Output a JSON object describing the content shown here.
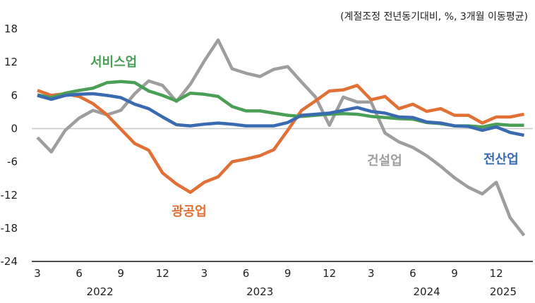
{
  "chart_data": {
    "type": "line",
    "unit_note": "(계절조정 전년동기대비, %, 3개월 이동평균)",
    "x": [
      "2022-03",
      "2022-04",
      "2022-05",
      "2022-06",
      "2022-07",
      "2022-08",
      "2022-09",
      "2022-10",
      "2022-11",
      "2022-12",
      "2023-01",
      "2023-02",
      "2023-03",
      "2023-04",
      "2023-05",
      "2023-06",
      "2023-07",
      "2023-08",
      "2023-09",
      "2023-10",
      "2023-11",
      "2023-12",
      "2024-01",
      "2024-02",
      "2024-03",
      "2024-04",
      "2024-05",
      "2024-06",
      "2024-07",
      "2024-08",
      "2024-09",
      "2024-10",
      "2024-11",
      "2024-12",
      "2025-01",
      "2025-02"
    ],
    "x_tick_labels": [
      "3",
      "6",
      "9",
      "12",
      "3",
      "6",
      "9",
      "12",
      "3",
      "6",
      "9",
      "12"
    ],
    "year_labels": [
      "2022",
      "2023",
      "2024",
      "2025"
    ],
    "ylim": [
      -24,
      18
    ],
    "y_ticks": [
      "18",
      "12",
      "6",
      "0",
      "-6",
      "-12",
      "-18",
      "-24"
    ],
    "grid": false,
    "zero_line": true,
    "series": [
      {
        "name": "전산업",
        "color": "#3a6ab0",
        "values": [
          6.0,
          5.3,
          6.0,
          6.2,
          6.3,
          6.0,
          5.6,
          4.4,
          3.6,
          2.1,
          0.7,
          0.5,
          0.8,
          1.0,
          0.8,
          0.5,
          0.5,
          0.5,
          1.1,
          2.4,
          2.6,
          2.8,
          3.3,
          3.8,
          3.1,
          2.8,
          2.1,
          2.0,
          1.2,
          1.0,
          0.5,
          0.4,
          -0.3,
          0.3,
          -0.7,
          -1.2
        ]
      },
      {
        "name": "광공업",
        "color": "#e07035",
        "values": [
          6.9,
          6.0,
          6.3,
          5.8,
          4.5,
          2.5,
          -0.1,
          -2.7,
          -3.9,
          -8.0,
          -10.0,
          -11.5,
          -9.7,
          -8.7,
          -6.0,
          -5.5,
          -4.9,
          -3.8,
          -0.3,
          3.3,
          5.0,
          6.8,
          7.0,
          7.8,
          5.2,
          5.8,
          3.6,
          4.4,
          3.1,
          3.6,
          2.4,
          2.4,
          1.0,
          2.1,
          2.1,
          2.6
        ]
      },
      {
        "name": "서비스업",
        "color": "#4a9e55",
        "values": [
          6.1,
          5.6,
          6.4,
          6.9,
          7.3,
          8.3,
          8.5,
          8.3,
          6.8,
          6.0,
          5.0,
          6.4,
          6.2,
          5.8,
          4.0,
          3.2,
          3.2,
          2.8,
          2.4,
          2.2,
          2.4,
          2.6,
          2.7,
          2.6,
          2.2,
          2.0,
          1.8,
          1.7,
          1.1,
          0.9,
          0.5,
          0.5,
          0.3,
          0.8,
          0.6,
          0.6
        ]
      },
      {
        "name": "건설업",
        "color": "#9e9e9e",
        "values": [
          -1.6,
          -4.2,
          -0.3,
          1.9,
          3.3,
          2.5,
          3.3,
          6.3,
          8.6,
          7.8,
          4.9,
          8.0,
          12.2,
          16.0,
          10.8,
          10.0,
          9.4,
          10.7,
          11.2,
          8.4,
          5.7,
          0.6,
          5.7,
          4.8,
          4.8,
          -0.8,
          -2.4,
          -3.4,
          -4.9,
          -6.8,
          -8.9,
          -10.6,
          -11.8,
          -9.7,
          -16.1,
          -19.3
        ]
      }
    ]
  }
}
